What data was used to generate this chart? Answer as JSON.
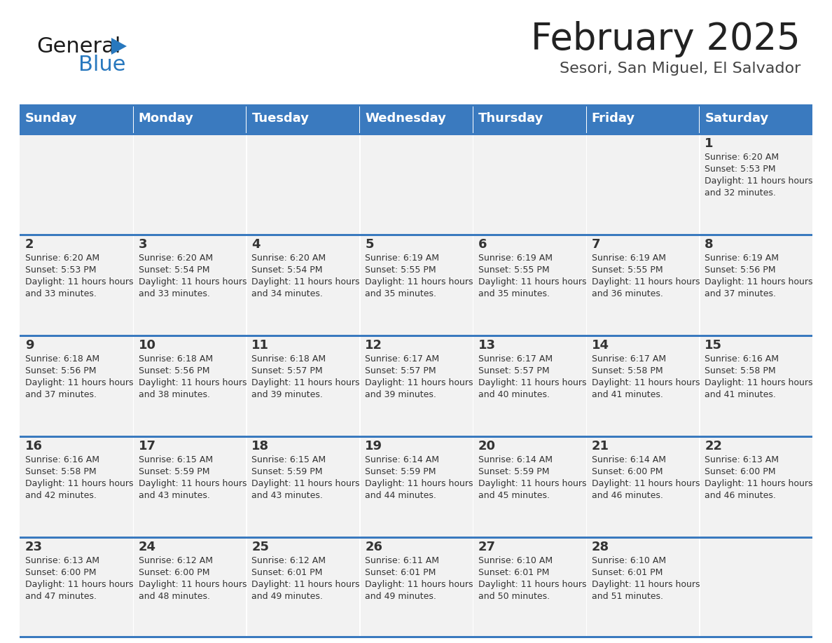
{
  "title": "February 2025",
  "subtitle": "Sesori, San Miguel, El Salvador",
  "days_of_week": [
    "Sunday",
    "Monday",
    "Tuesday",
    "Wednesday",
    "Thursday",
    "Friday",
    "Saturday"
  ],
  "header_bg": "#3a7abf",
  "header_text": "#ffffff",
  "cell_bg": "#f2f2f2",
  "divider_color": "#3a7abf",
  "text_color": "#333333",
  "title_color": "#222222",
  "subtitle_color": "#444444",
  "logo_general_color": "#1a1a1a",
  "logo_blue_color": "#2878be",
  "num_cols": 7,
  "num_rows": 5,
  "calendar_data": [
    [
      null,
      null,
      null,
      null,
      null,
      null,
      {
        "day": 1,
        "sunrise": "6:20 AM",
        "sunset": "5:53 PM",
        "daylight": "11 hours and 32 minutes."
      }
    ],
    [
      {
        "day": 2,
        "sunrise": "6:20 AM",
        "sunset": "5:53 PM",
        "daylight": "11 hours and 33 minutes."
      },
      {
        "day": 3,
        "sunrise": "6:20 AM",
        "sunset": "5:54 PM",
        "daylight": "11 hours and 33 minutes."
      },
      {
        "day": 4,
        "sunrise": "6:20 AM",
        "sunset": "5:54 PM",
        "daylight": "11 hours and 34 minutes."
      },
      {
        "day": 5,
        "sunrise": "6:19 AM",
        "sunset": "5:55 PM",
        "daylight": "11 hours and 35 minutes."
      },
      {
        "day": 6,
        "sunrise": "6:19 AM",
        "sunset": "5:55 PM",
        "daylight": "11 hours and 35 minutes."
      },
      {
        "day": 7,
        "sunrise": "6:19 AM",
        "sunset": "5:55 PM",
        "daylight": "11 hours and 36 minutes."
      },
      {
        "day": 8,
        "sunrise": "6:19 AM",
        "sunset": "5:56 PM",
        "daylight": "11 hours and 37 minutes."
      }
    ],
    [
      {
        "day": 9,
        "sunrise": "6:18 AM",
        "sunset": "5:56 PM",
        "daylight": "11 hours and 37 minutes."
      },
      {
        "day": 10,
        "sunrise": "6:18 AM",
        "sunset": "5:56 PM",
        "daylight": "11 hours and 38 minutes."
      },
      {
        "day": 11,
        "sunrise": "6:18 AM",
        "sunset": "5:57 PM",
        "daylight": "11 hours and 39 minutes."
      },
      {
        "day": 12,
        "sunrise": "6:17 AM",
        "sunset": "5:57 PM",
        "daylight": "11 hours and 39 minutes."
      },
      {
        "day": 13,
        "sunrise": "6:17 AM",
        "sunset": "5:57 PM",
        "daylight": "11 hours and 40 minutes."
      },
      {
        "day": 14,
        "sunrise": "6:17 AM",
        "sunset": "5:58 PM",
        "daylight": "11 hours and 41 minutes."
      },
      {
        "day": 15,
        "sunrise": "6:16 AM",
        "sunset": "5:58 PM",
        "daylight": "11 hours and 41 minutes."
      }
    ],
    [
      {
        "day": 16,
        "sunrise": "6:16 AM",
        "sunset": "5:58 PM",
        "daylight": "11 hours and 42 minutes."
      },
      {
        "day": 17,
        "sunrise": "6:15 AM",
        "sunset": "5:59 PM",
        "daylight": "11 hours and 43 minutes."
      },
      {
        "day": 18,
        "sunrise": "6:15 AM",
        "sunset": "5:59 PM",
        "daylight": "11 hours and 43 minutes."
      },
      {
        "day": 19,
        "sunrise": "6:14 AM",
        "sunset": "5:59 PM",
        "daylight": "11 hours and 44 minutes."
      },
      {
        "day": 20,
        "sunrise": "6:14 AM",
        "sunset": "5:59 PM",
        "daylight": "11 hours and 45 minutes."
      },
      {
        "day": 21,
        "sunrise": "6:14 AM",
        "sunset": "6:00 PM",
        "daylight": "11 hours and 46 minutes."
      },
      {
        "day": 22,
        "sunrise": "6:13 AM",
        "sunset": "6:00 PM",
        "daylight": "11 hours and 46 minutes."
      }
    ],
    [
      {
        "day": 23,
        "sunrise": "6:13 AM",
        "sunset": "6:00 PM",
        "daylight": "11 hours and 47 minutes."
      },
      {
        "day": 24,
        "sunrise": "6:12 AM",
        "sunset": "6:00 PM",
        "daylight": "11 hours and 48 minutes."
      },
      {
        "day": 25,
        "sunrise": "6:12 AM",
        "sunset": "6:01 PM",
        "daylight": "11 hours and 49 minutes."
      },
      {
        "day": 26,
        "sunrise": "6:11 AM",
        "sunset": "6:01 PM",
        "daylight": "11 hours and 49 minutes."
      },
      {
        "day": 27,
        "sunrise": "6:10 AM",
        "sunset": "6:01 PM",
        "daylight": "11 hours and 50 minutes."
      },
      {
        "day": 28,
        "sunrise": "6:10 AM",
        "sunset": "6:01 PM",
        "daylight": "11 hours and 51 minutes."
      },
      null
    ]
  ]
}
